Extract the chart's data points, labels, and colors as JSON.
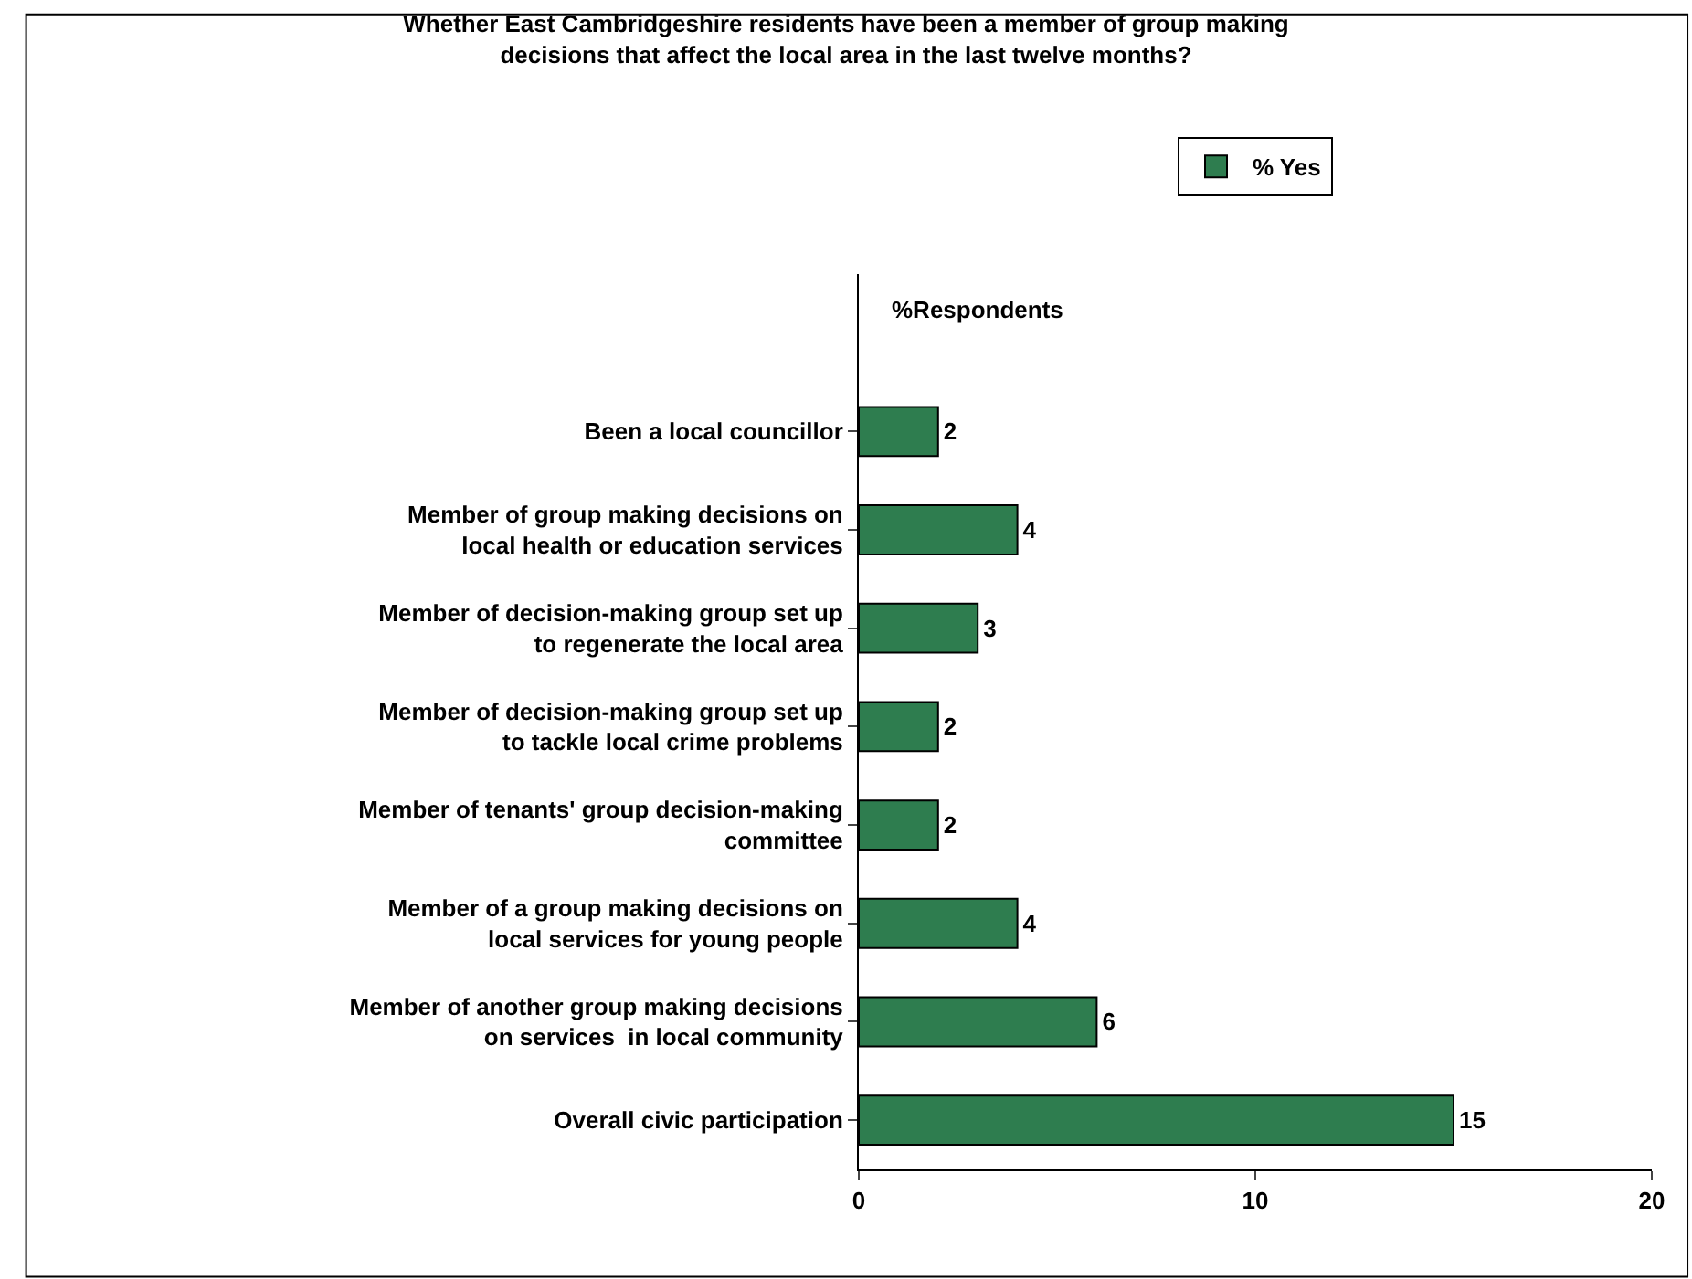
{
  "chart_data": {
    "type": "bar",
    "orientation": "horizontal",
    "title": "Whether East Cambridgeshire residents have been a member of group making decisions that affect the local area in the last twelve months?",
    "categories": [
      "Been a local councillor",
      "Member of group making decisions on local health or education services",
      "Member of decision-making group set up to regenerate the local area",
      "Member of decision-making group set up to tackle local crime problems",
      "Member of tenants' group decision-making committee",
      "Member of a group making decisions on local services for young people",
      "Member of another group making decisions on services  in local community",
      "Overall civic participation"
    ],
    "series": [
      {
        "name": "% Yes",
        "color": "#2e7d4f",
        "values": [
          2,
          4,
          3,
          2,
          2,
          4,
          6,
          15
        ]
      }
    ],
    "xlim": [
      0,
      20
    ],
    "xticks": [
      0,
      10,
      20
    ],
    "data_labels": true,
    "legend": "top",
    "annotations": [
      "%Respondents"
    ]
  }
}
